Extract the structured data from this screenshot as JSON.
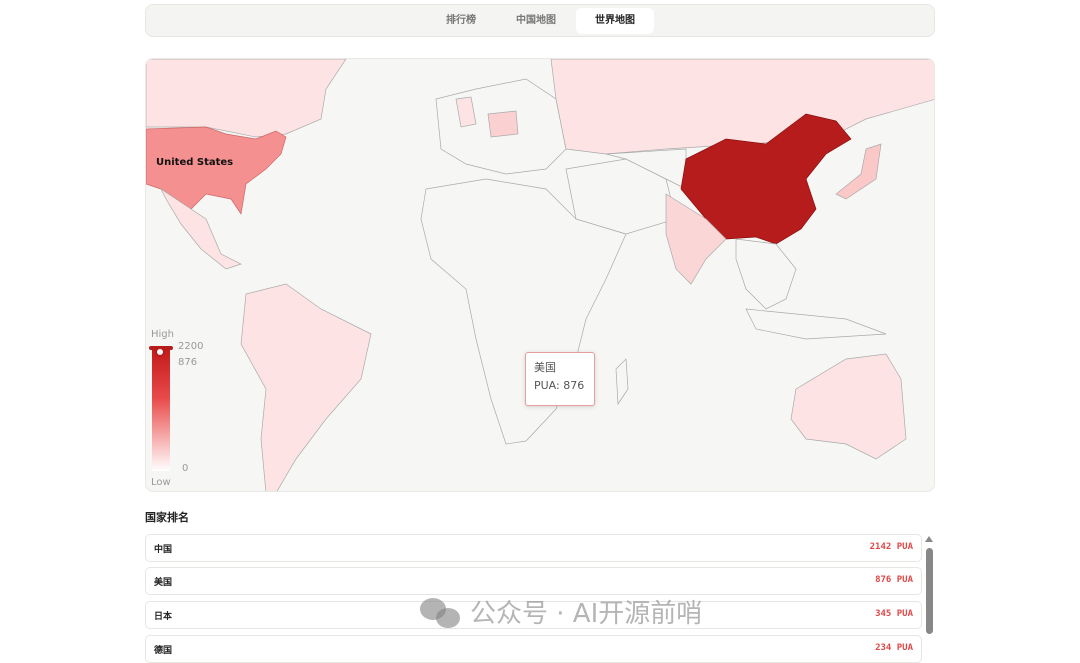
{
  "tabs": [
    {
      "label": "排行榜"
    },
    {
      "label": "中国地图"
    },
    {
      "label": "世界地图",
      "active": true
    }
  ],
  "map": {
    "hover_label": "United States",
    "tooltip": {
      "name": "美国",
      "value_text": "PUA: 876"
    },
    "legend": {
      "high": "High",
      "low": "Low",
      "max": "2200",
      "min": "0",
      "handle_value": "876"
    },
    "colors": {
      "china": "#b71c1c",
      "us": "#f59090",
      "light": "#fde3e3",
      "none": "#f6f6f4"
    }
  },
  "ranking": {
    "title": "国家排名",
    "rows": [
      {
        "name": "中国",
        "value": "2142 PUA"
      },
      {
        "name": "美国",
        "value": "876 PUA"
      },
      {
        "name": "日本",
        "value": "345 PUA"
      },
      {
        "name": "德国",
        "value": "234 PUA"
      }
    ]
  },
  "watermark": "公众号 · AI开源前哨"
}
